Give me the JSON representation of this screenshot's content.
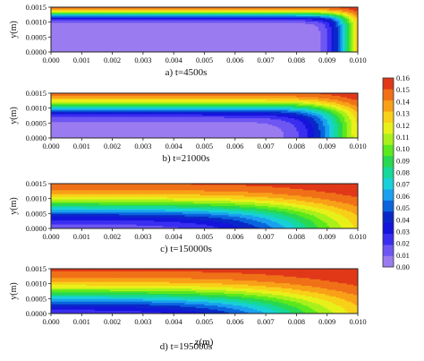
{
  "chart_data": {
    "type": "heatmap",
    "panels": [
      {
        "caption": "a) t=4500s",
        "time_s": 4500,
        "front_x": 0.0096,
        "width_x": 0.0003,
        "front_y": 0.00125,
        "width_y": 0.0001
      },
      {
        "caption": "b) t=21000s",
        "time_s": 21000,
        "front_x": 0.0093,
        "width_x": 0.0006,
        "front_y": 0.00105,
        "width_y": 0.00018
      },
      {
        "caption": "c) t=150000s",
        "time_s": 150000,
        "front_x": 0.0084,
        "width_x": 0.0014,
        "front_y": 0.00072,
        "width_y": 0.00028
      },
      {
        "caption": "d) t=195000s",
        "time_s": 195000,
        "front_x": 0.0081,
        "width_x": 0.0016,
        "front_y": 0.0006,
        "width_y": 0.0003
      }
    ],
    "xlabel": "z(m)",
    "ylabel": "y(m)",
    "xlim": [
      0.0,
      0.01
    ],
    "ylim": [
      0.0,
      0.0015
    ],
    "xticks": [
      "0.000",
      "0.001",
      "0.002",
      "0.003",
      "0.004",
      "0.005",
      "0.006",
      "0.007",
      "0.008",
      "0.009",
      "0.010"
    ],
    "yticks": [
      "0.0000",
      "0.0005",
      "0.0010",
      "0.0015"
    ],
    "colorbar": {
      "min": 0.0,
      "max": 0.16,
      "ticks": [
        "0.16",
        "0.15",
        "0.14",
        "0.13",
        "0.12",
        "0.11",
        "0.10",
        "0.09",
        "0.08",
        "0.07",
        "0.06",
        "0.05",
        "0.04",
        "0.03",
        "0.02",
        "0.01",
        "0.00"
      ],
      "colors": [
        "#9b7cf0",
        "#6e56f2",
        "#3a2ef0",
        "#1414dc",
        "#0a28c8",
        "#0a64dc",
        "#1aa0ee",
        "#18d0d8",
        "#16d89a",
        "#28d850",
        "#5ae81e",
        "#a8f01a",
        "#e8f01a",
        "#f8d018",
        "#f8a018",
        "#f07018",
        "#e03818"
      ]
    }
  }
}
